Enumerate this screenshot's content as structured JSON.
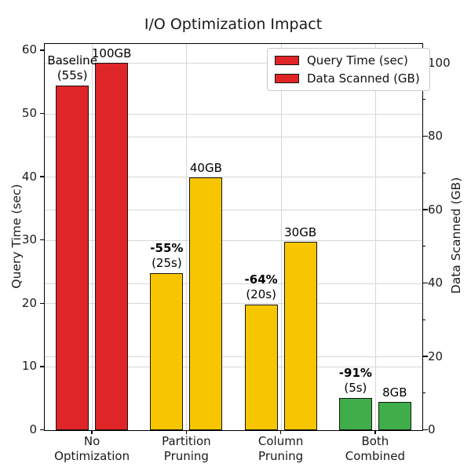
{
  "chart_data": {
    "type": "bar",
    "title": "I/O Optimization Impact",
    "categories": [
      "No\nOptimization",
      "Partition\nPruning",
      "Column\nPruning",
      "Both\nCombined"
    ],
    "series": [
      {
        "name": "Query Time (sec)",
        "axis": "left",
        "pattern": "solid",
        "values": [
          55,
          25,
          20,
          5
        ]
      },
      {
        "name": "Data Scanned (GB)",
        "axis": "right",
        "pattern": "hatch",
        "values": [
          100,
          40,
          30,
          8
        ]
      }
    ],
    "category_colors": [
      "#df2527",
      "#f7c600",
      "#f7c600",
      "#3fae4a"
    ],
    "bar_annotations": {
      "solid": [
        [
          "Baseline",
          "(55s)"
        ],
        [
          "-55%",
          "(25s)"
        ],
        [
          "-64%",
          "(20s)"
        ],
        [
          "-91%",
          "(5s)"
        ]
      ],
      "solid_first_line_bold": [
        false,
        true,
        true,
        true
      ],
      "hatched": [
        "100GB",
        "40GB",
        "30GB",
        "8GB"
      ]
    },
    "left_axis": {
      "label": "Query Time (sec)",
      "ticks": [
        0,
        10,
        20,
        30,
        40,
        50,
        60
      ],
      "range": [
        0,
        61
      ]
    },
    "right_axis": {
      "label": "Data Scanned (GB)",
      "ticks": [
        0,
        20,
        40,
        60,
        80,
        100
      ],
      "minor_ticks": [
        10,
        30,
        50,
        70,
        90
      ],
      "range": [
        0,
        105
      ]
    },
    "legend_position": "upper right",
    "grid": true,
    "plotted_heights_left_axis_units": {
      "solid": [
        54.4,
        24.8,
        19.8,
        5.0
      ],
      "hatched": [
        58.0,
        39.9,
        29.7,
        4.4
      ]
    },
    "colors": {
      "red": "#df2527",
      "yellow": "#f7c600",
      "green": "#3fae4a",
      "bar_edge": "#151515",
      "grid": "#d7d7d7"
    }
  }
}
